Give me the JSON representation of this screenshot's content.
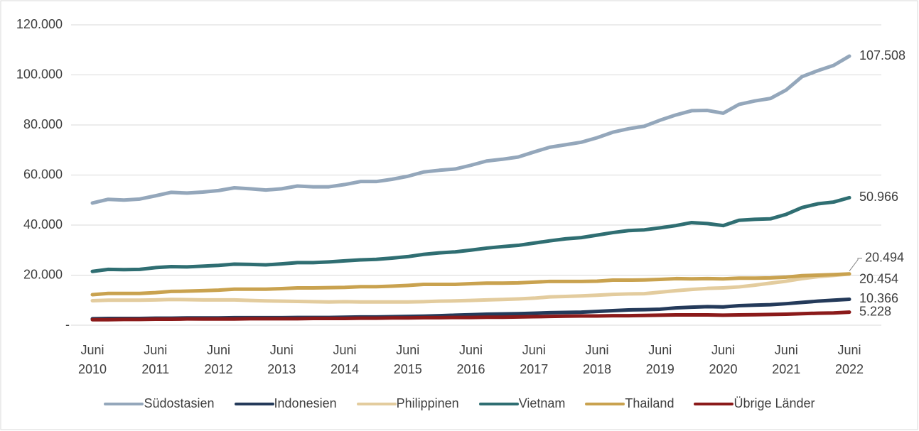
{
  "chart_data": {
    "type": "line",
    "categories": [
      "Juni 2010",
      null,
      null,
      null,
      "Juni 2011",
      null,
      null,
      null,
      "Juni 2012",
      null,
      null,
      null,
      "Juni 2013",
      null,
      null,
      null,
      "Juni 2014",
      null,
      null,
      null,
      "Juni 2015",
      null,
      null,
      null,
      "Juni 2016",
      null,
      null,
      null,
      "Juni 2017",
      null,
      null,
      null,
      "Juni 2018",
      null,
      null,
      null,
      "Juni 2019",
      null,
      null,
      null,
      "Juni 2020",
      null,
      null,
      null,
      "Juni 2021",
      null,
      null,
      null,
      "Juni 2022"
    ],
    "ylim": [
      0,
      120000
    ],
    "yticks": [
      {
        "value": 0,
        "label": "-"
      },
      {
        "value": 20000,
        "label": "20.000"
      },
      {
        "value": 40000,
        "label": "40.000"
      },
      {
        "value": 60000,
        "label": "60.000"
      },
      {
        "value": 80000,
        "label": "80.000"
      },
      {
        "value": 100000,
        "label": "100.000"
      },
      {
        "value": 120000,
        "label": "120.000"
      }
    ],
    "grid": true,
    "legend": "bottom",
    "series": [
      {
        "name": "Südostasien",
        "color": "#94a7bb",
        "values": [
          48800,
          50300,
          50000,
          50400,
          51700,
          53100,
          52800,
          53200,
          53800,
          54900,
          54500,
          54000,
          54500,
          55600,
          55300,
          55300,
          56200,
          57400,
          57400,
          58300,
          59500,
          61200,
          61900,
          62400,
          63900,
          65600,
          66300,
          67200,
          69200,
          71100,
          72100,
          73100,
          74900,
          77100,
          78500,
          79500,
          81900,
          84000,
          85700,
          85800,
          84700,
          88200,
          89600,
          90600,
          94000,
          99300,
          101700,
          103800,
          107508
        ],
        "value_labels": [
          null,
          null,
          null,
          null,
          null,
          null,
          null,
          null,
          null,
          null,
          null,
          null,
          null,
          null,
          null,
          null,
          null,
          null,
          null,
          null,
          null,
          null,
          null,
          null,
          null,
          null,
          null,
          null,
          null,
          null,
          null,
          null,
          null,
          null,
          null,
          null,
          null,
          null,
          null,
          null,
          null,
          null,
          null,
          null,
          null,
          null,
          null,
          null,
          "107.508"
        ]
      },
      {
        "name": "Indonesien",
        "color": "#243a5a",
        "values": [
          2600,
          2700,
          2700,
          2700,
          2800,
          2800,
          2900,
          2900,
          2900,
          3000,
          3000,
          3000,
          3000,
          3100,
          3100,
          3100,
          3200,
          3300,
          3300,
          3400,
          3500,
          3600,
          3800,
          4000,
          4200,
          4400,
          4500,
          4600,
          4800,
          5000,
          5100,
          5200,
          5500,
          5800,
          6100,
          6200,
          6400,
          6900,
          7200,
          7400,
          7300,
          7800,
          8000,
          8200,
          8600,
          9100,
          9600,
          10000,
          10366
        ],
        "value_labels": [
          null,
          null,
          null,
          null,
          null,
          null,
          null,
          null,
          null,
          null,
          null,
          null,
          null,
          null,
          null,
          null,
          null,
          null,
          null,
          null,
          null,
          null,
          null,
          null,
          null,
          null,
          null,
          null,
          null,
          null,
          null,
          null,
          null,
          null,
          null,
          null,
          null,
          null,
          null,
          null,
          null,
          null,
          null,
          null,
          null,
          null,
          null,
          null,
          "10.366"
        ]
      },
      {
        "name": "Philippinen",
        "color": "#e3cc9e",
        "values": [
          9800,
          10000,
          10000,
          10000,
          10100,
          10300,
          10200,
          10100,
          10100,
          10100,
          9900,
          9700,
          9600,
          9500,
          9400,
          9300,
          9400,
          9300,
          9300,
          9300,
          9300,
          9400,
          9600,
          9700,
          9900,
          10100,
          10300,
          10500,
          10800,
          11300,
          11500,
          11700,
          12000,
          12300,
          12500,
          12600,
          13200,
          13800,
          14300,
          14700,
          14900,
          15300,
          16000,
          16800,
          17600,
          18600,
          19400,
          19900,
          20454
        ],
        "value_labels": [
          null,
          null,
          null,
          null,
          null,
          null,
          null,
          null,
          null,
          null,
          null,
          null,
          null,
          null,
          null,
          null,
          null,
          null,
          null,
          null,
          null,
          null,
          null,
          null,
          null,
          null,
          null,
          null,
          null,
          null,
          null,
          null,
          null,
          null,
          null,
          null,
          null,
          null,
          null,
          null,
          null,
          null,
          null,
          null,
          null,
          null,
          null,
          null,
          "20.454"
        ]
      },
      {
        "name": "Vietnam",
        "color": "#2f6e72",
        "values": [
          21500,
          22300,
          22200,
          22300,
          23000,
          23400,
          23300,
          23600,
          23900,
          24400,
          24300,
          24100,
          24500,
          25000,
          25000,
          25300,
          25700,
          26100,
          26300,
          26800,
          27400,
          28300,
          28900,
          29300,
          30000,
          30800,
          31400,
          31900,
          32800,
          33700,
          34500,
          35000,
          36000,
          37000,
          37800,
          38100,
          38900,
          39800,
          41000,
          40600,
          39800,
          41900,
          42300,
          42500,
          44300,
          47000,
          48500,
          49200,
          50966
        ],
        "value_labels": [
          null,
          null,
          null,
          null,
          null,
          null,
          null,
          null,
          null,
          null,
          null,
          null,
          null,
          null,
          null,
          null,
          null,
          null,
          null,
          null,
          null,
          null,
          null,
          null,
          null,
          null,
          null,
          null,
          null,
          null,
          null,
          null,
          null,
          null,
          null,
          null,
          null,
          null,
          null,
          null,
          null,
          null,
          null,
          null,
          null,
          null,
          null,
          null,
          "50.966"
        ]
      },
      {
        "name": "Thailand",
        "color": "#c9a24f",
        "values": [
          12200,
          12700,
          12700,
          12700,
          13000,
          13500,
          13600,
          13800,
          14000,
          14400,
          14400,
          14400,
          14600,
          14900,
          14900,
          15000,
          15100,
          15400,
          15400,
          15600,
          15900,
          16300,
          16300,
          16300,
          16600,
          16800,
          16800,
          16900,
          17200,
          17500,
          17500,
          17500,
          17600,
          18000,
          18000,
          18100,
          18300,
          18600,
          18500,
          18600,
          18500,
          18800,
          18800,
          18900,
          19200,
          19800,
          20000,
          20200,
          20494
        ],
        "value_labels": [
          null,
          null,
          null,
          null,
          null,
          null,
          null,
          null,
          null,
          null,
          null,
          null,
          null,
          null,
          null,
          null,
          null,
          null,
          null,
          null,
          null,
          null,
          null,
          null,
          null,
          null,
          null,
          null,
          null,
          null,
          null,
          null,
          null,
          null,
          null,
          null,
          null,
          null,
          null,
          null,
          null,
          null,
          null,
          null,
          null,
          null,
          null,
          null,
          "20.494"
        ]
      },
      {
        "name": "Übrige Länder",
        "color": "#8b1a1a",
        "values": [
          2200,
          2200,
          2300,
          2300,
          2400,
          2400,
          2500,
          2500,
          2500,
          2500,
          2600,
          2600,
          2600,
          2600,
          2700,
          2700,
          2700,
          2800,
          2800,
          2900,
          2900,
          3000,
          3000,
          3100,
          3100,
          3200,
          3200,
          3300,
          3400,
          3500,
          3600,
          3700,
          3700,
          3800,
          3800,
          3900,
          4000,
          4100,
          4100,
          4100,
          4000,
          4100,
          4200,
          4300,
          4400,
          4600,
          4800,
          4900,
          5228
        ],
        "value_labels": [
          null,
          null,
          null,
          null,
          null,
          null,
          null,
          null,
          null,
          null,
          null,
          null,
          null,
          null,
          null,
          null,
          null,
          null,
          null,
          null,
          null,
          null,
          null,
          null,
          null,
          null,
          null,
          null,
          null,
          null,
          null,
          null,
          null,
          null,
          null,
          null,
          null,
          null,
          null,
          null,
          null,
          null,
          null,
          null,
          null,
          null,
          null,
          null,
          "5.228"
        ]
      }
    ]
  }
}
